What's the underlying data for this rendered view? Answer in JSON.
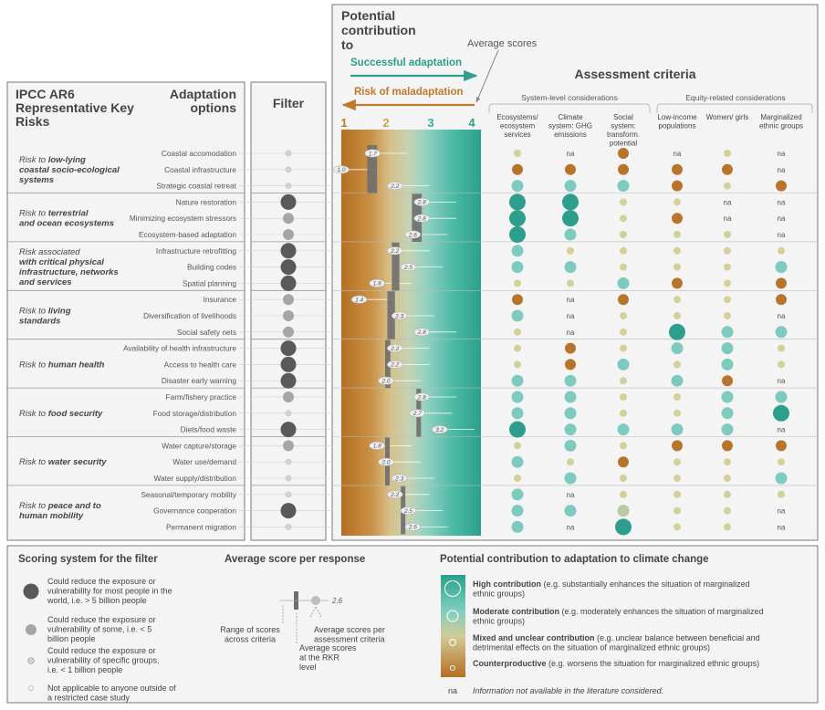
{
  "header": {
    "ipcc_title": "IPCC AR6 Representative Key Risks",
    "adaptation_options_title": "Adaptation options",
    "filter_title": "Filter",
    "potential_contribution_title": "Potential contribution to",
    "average_scores_label": "Average scores",
    "successful_adaptation": "Successful adaptation",
    "risk_of_maladaptation": "Risk of maladaptation",
    "assessment_criteria_title": "Assessment criteria",
    "system_level_label": "System-level considerations",
    "equity_related_label": "Equity-related considerations",
    "scale_ticks": [
      "1",
      "2",
      "3",
      "4"
    ],
    "criteria_columns": [
      "Ecosystems/ ecosystem services",
      "Climate system: GHG emissions",
      "Social system: transform. potential",
      "Low-income populations",
      "Women/ girls",
      "Marginalized ethnic groups"
    ]
  },
  "colors": {
    "high": "#2e9e8c",
    "moderate": "#7dcbbf",
    "mixed": "#d4d09a",
    "counterproductive": "#b8742a",
    "filter_large": "#595959",
    "filter_medium": "#a6a6a6",
    "filter_small": "#d2d2d2"
  },
  "risk_groups": [
    {
      "prefix": "Risk to",
      "name": "low-lying coastal socio-ecological systems",
      "line2": "coastal socio-ecological",
      "line3": "systems",
      "start": 0,
      "count": 3
    },
    {
      "prefix": "Risk to",
      "name": "terrestrial and ocean ecosystems",
      "line2": "and ocean",
      "line3": "ecosystems",
      "start": 3,
      "count": 3
    },
    {
      "prefix": "Risk associated",
      "name": "with critical physical infrastructure, networks and services",
      "line2": "with critical physical",
      "line3": "infrastructure,",
      "line4": "networks and services",
      "start": 6,
      "count": 3
    },
    {
      "prefix": "Risk to",
      "name": "living standards",
      "start": 9,
      "count": 3
    },
    {
      "prefix": "Risk to",
      "name": "human health",
      "start": 12,
      "count": 3
    },
    {
      "prefix": "Risk to",
      "name": "food security",
      "start": 15,
      "count": 3
    },
    {
      "prefix": "Risk to",
      "name": "water security",
      "start": 18,
      "count": 3
    },
    {
      "prefix": "Risk to",
      "name": "peace and to human mobility",
      "start": 21,
      "count": 3
    }
  ],
  "rows": [
    {
      "option": "Coastal accomodation",
      "filter": "s",
      "avg": 1.7,
      "rkr_avg": 1.7,
      "range": [
        1.6,
        1.9
      ],
      "scores": [
        "mx",
        "na",
        "cp",
        "na",
        "mx",
        "na"
      ]
    },
    {
      "option": "Coastal infrastructure",
      "filter": "s",
      "avg": 1.0,
      "rkr_avg": 1.7,
      "range": [
        1.6,
        1.9
      ],
      "scores": [
        "cp",
        "cp",
        "cp",
        "cp",
        "cp",
        "na"
      ]
    },
    {
      "option": "Strategic coastal retreat",
      "filter": "s",
      "avg": 2.2,
      "rkr_avg": 1.7,
      "range": [
        1.6,
        1.9
      ],
      "scores": [
        "mo",
        "mo",
        "mo",
        "cp",
        "mx",
        "cp"
      ]
    },
    {
      "option": "Nature restoration",
      "filter": "l",
      "avg": 2.8,
      "rkr_avg": 2.7,
      "range": [
        2.6,
        2.9
      ],
      "scores": [
        "hi",
        "hi",
        "mx",
        "mx",
        "na",
        "na"
      ]
    },
    {
      "option": "Minimizing ecosystem stressors",
      "filter": "m",
      "avg": 2.8,
      "rkr_avg": 2.7,
      "range": [
        2.6,
        2.9
      ],
      "scores": [
        "hi",
        "hi",
        "mx",
        "cp",
        "na",
        "na"
      ]
    },
    {
      "option": "Ecosystem-based adaptation",
      "filter": "m",
      "avg": 2.6,
      "rkr_avg": 2.7,
      "range": [
        2.6,
        2.9
      ],
      "scores": [
        "hi",
        "mo",
        "mx",
        "mx",
        "mx",
        "na"
      ]
    },
    {
      "option": "Infrastructure retrofitting",
      "filter": "l",
      "avg": 2.2,
      "rkr_avg": 2.2,
      "range": [
        2.15,
        2.4
      ],
      "scores": [
        "mo",
        "mx",
        "mx",
        "mx",
        "mx",
        "mx"
      ]
    },
    {
      "option": "Building codes",
      "filter": "l",
      "avg": 2.5,
      "rkr_avg": 2.2,
      "range": [
        2.15,
        2.4
      ],
      "scores": [
        "mo",
        "mo",
        "mx",
        "mx",
        "mx",
        "mo"
      ]
    },
    {
      "option": "Spatial planning",
      "filter": "l",
      "avg": 1.8,
      "rkr_avg": 2.2,
      "range": [
        2.15,
        2.4
      ],
      "scores": [
        "mx",
        "mx",
        "mo",
        "cp",
        "mx",
        "cp"
      ]
    },
    {
      "option": "Insurance",
      "filter": "m",
      "avg": 1.4,
      "rkr_avg": 2.1,
      "range": [
        2.05,
        2.3
      ],
      "scores": [
        "cp",
        "na",
        "cp",
        "mx",
        "mx",
        "cp"
      ]
    },
    {
      "option": "Diversification of livelihoods",
      "filter": "m",
      "avg": 2.3,
      "rkr_avg": 2.1,
      "range": [
        2.05,
        2.3
      ],
      "scores": [
        "mo",
        "na",
        "mx",
        "mx",
        "mx",
        "na"
      ]
    },
    {
      "option": "Social safety nets",
      "filter": "m",
      "avg": 2.8,
      "rkr_avg": 2.1,
      "range": [
        2.05,
        2.3
      ],
      "scores": [
        "mx",
        "na",
        "mx",
        "hi",
        "mo",
        "mo"
      ]
    },
    {
      "option": "Availability of health infrastructure",
      "filter": "l",
      "avg": 2.2,
      "rkr_avg": 2.1,
      "range": [
        2.0,
        2.2
      ],
      "scores": [
        "mx",
        "cp",
        "mx",
        "mo",
        "mo",
        "mx"
      ]
    },
    {
      "option": "Access to health care",
      "filter": "l",
      "avg": 2.2,
      "rkr_avg": 2.1,
      "range": [
        2.0,
        2.2
      ],
      "scores": [
        "mx",
        "cp",
        "mo",
        "mx",
        "mo",
        "mx"
      ]
    },
    {
      "option": "Disaster early warning",
      "filter": "l",
      "avg": 2.0,
      "rkr_avg": 2.1,
      "range": [
        2.0,
        2.2
      ],
      "scores": [
        "mo",
        "mo",
        "mx",
        "mo",
        "cp",
        "na"
      ]
    },
    {
      "option": "Farm/fishery practice",
      "filter": "m",
      "avg": 2.8,
      "rkr_avg": 2.8,
      "range": [
        2.7,
        2.85
      ],
      "scores": [
        "mo",
        "mo",
        "mx",
        "mx",
        "mo",
        "mo"
      ]
    },
    {
      "option": "Food storage/distribution",
      "filter": "s",
      "avg": 2.7,
      "rkr_avg": 2.8,
      "range": [
        2.7,
        2.85
      ],
      "scores": [
        "mo",
        "mo",
        "mx",
        "mx",
        "mo",
        "hi"
      ]
    },
    {
      "option": "Diets/food waste",
      "filter": "l",
      "avg": 3.2,
      "rkr_avg": 2.8,
      "range": [
        2.7,
        2.85
      ],
      "scores": [
        "hi",
        "mo",
        "mo",
        "mo",
        "mo",
        "na"
      ]
    },
    {
      "option": "Water capture/storage",
      "filter": "m",
      "avg": 1.8,
      "rkr_avg": 2.1,
      "range": [
        2.0,
        2.15
      ],
      "scores": [
        "mx",
        "mo",
        "mx",
        "cp",
        "cp",
        "cp"
      ]
    },
    {
      "option": "Water use/demand",
      "filter": "s",
      "avg": 2.0,
      "rkr_avg": 2.1,
      "range": [
        2.0,
        2.15
      ],
      "scores": [
        "mo",
        "mx",
        "cp",
        "mx",
        "mx",
        "mx"
      ]
    },
    {
      "option": "Water supply/distribution",
      "filter": "s",
      "avg": 2.3,
      "rkr_avg": 2.1,
      "range": [
        2.0,
        2.15
      ],
      "scores": [
        "mx",
        "mo",
        "mx",
        "mx",
        "mx",
        "mo"
      ]
    },
    {
      "option": "Seasonal/temporary mobility",
      "filter": "s",
      "avg": 2.2,
      "rkr_avg": 2.4,
      "range": [
        2.35,
        2.45
      ],
      "scores": [
        "mo",
        "na",
        "mx",
        "mx",
        "mx",
        "mx"
      ]
    },
    {
      "option": "Governance cooperation",
      "filter": "l",
      "avg": 2.5,
      "rkr_avg": 2.4,
      "range": [
        2.35,
        2.45
      ],
      "scores": [
        "mo",
        "mo",
        "mg",
        "mx",
        "mx",
        "na"
      ]
    },
    {
      "option": "Permanent migration",
      "filter": "s",
      "avg": 2.6,
      "rkr_avg": 2.4,
      "range": [
        2.35,
        2.45
      ],
      "scores": [
        "mo",
        "na",
        "hi",
        "mx",
        "mx",
        "na"
      ]
    }
  ],
  "na_text": "na",
  "legend": {
    "scoring_title": "Scoring system for the filter",
    "scoring_items": [
      "Could reduce the exposure or vulnerability for most people in the world, i.e. > 5 billion people",
      "Could reduce the exposure or vulnerability of some, i.e. < 5 billion people",
      "Could reduce the exposure or vulnerability of specific groups, i.e. < 1 billion people",
      "Not applicable to anyone outside of a restricted case study"
    ],
    "average_title": "Average score per response",
    "average_value": "2.6",
    "range_label": "Range of scores across criteria",
    "avg_rkr_label": "Average scores at the RKR level",
    "avg_criteria_label": "Average scores per assessment criteria",
    "contribution_title": "Potential contribution to adaptation to climate change",
    "contribution_items": [
      {
        "bold": "High contribution",
        "rest": " (e.g. substantially enhances the situation of marginalized ethnic groups)"
      },
      {
        "bold": "Moderate contribution",
        "rest": " (e.g. moderately enhances the situation of marginalized ethnic groups)"
      },
      {
        "bold": "Mixed and unclear contribution",
        "rest": " (e.g. unclear balance between beneficial and detrimental effects on the situation of marginalized ethnic groups)"
      },
      {
        "bold": "Counterproductive",
        "rest": " (e.g. worsens the situation for marginalized ethnic groups)"
      }
    ],
    "na_label": "na",
    "na_text": "Information not available in the literature considered."
  }
}
